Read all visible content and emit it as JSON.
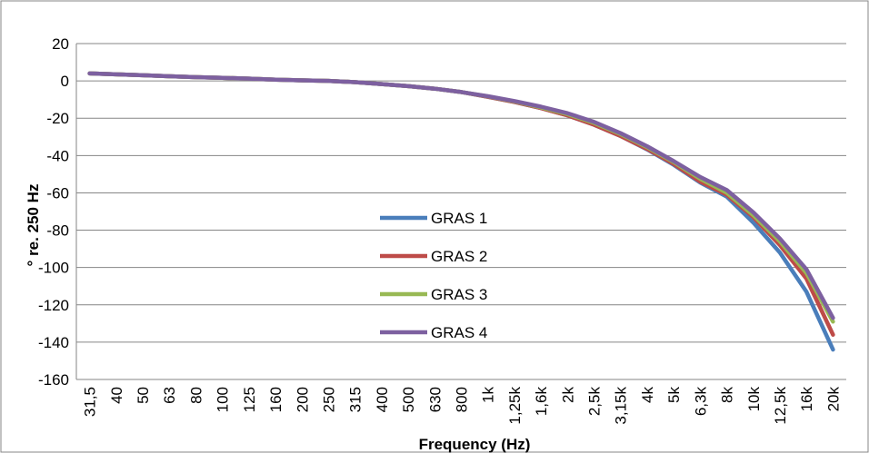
{
  "chart_data": {
    "type": "line",
    "xlabel": "Frequency (Hz)",
    "ylabel": "° re. 250 Hz",
    "ylim": [
      -160,
      20
    ],
    "ytick_step": 20,
    "grid": "horizontal",
    "legend_position": "center",
    "categories": [
      "31,5",
      "40",
      "50",
      "63",
      "80",
      "100",
      "125",
      "160",
      "200",
      "250",
      "315",
      "400",
      "500",
      "630",
      "800",
      "1k",
      "1,25k",
      "1,6k",
      "2k",
      "2,5k",
      "3,15k",
      "4k",
      "5k",
      "6,3k",
      "8k",
      "10k",
      "12,5k",
      "16k",
      "20k"
    ],
    "series": [
      {
        "name": "GRAS 1",
        "color": "#4a7ebb",
        "values": [
          4,
          3.5,
          3,
          2.5,
          2,
          1.6,
          1.2,
          0.7,
          0.3,
          0,
          -0.7,
          -1.7,
          -2.8,
          -4.2,
          -6,
          -8.5,
          -11.3,
          -14.6,
          -18.5,
          -23.5,
          -29.5,
          -36.7,
          -45,
          -54.5,
          -62,
          -76,
          -92,
          -113,
          -144
        ]
      },
      {
        "name": "GRAS 2",
        "color": "#be4b48",
        "values": [
          4,
          3.5,
          3,
          2.5,
          2,
          1.6,
          1.2,
          0.7,
          0.3,
          0,
          -0.7,
          -1.7,
          -2.8,
          -4.2,
          -6,
          -8.5,
          -11.3,
          -14.6,
          -18.5,
          -23.5,
          -29.5,
          -36.5,
          -44.5,
          -54,
          -61,
          -73,
          -88,
          -106,
          -136
        ]
      },
      {
        "name": "GRAS 3",
        "color": "#98b954",
        "values": [
          4,
          3.5,
          3,
          2.5,
          2,
          1.6,
          1.2,
          0.7,
          0.3,
          0,
          -0.7,
          -1.7,
          -2.8,
          -4.2,
          -6,
          -8.3,
          -11,
          -14.2,
          -17.8,
          -22.5,
          -28.5,
          -35.5,
          -43.5,
          -52.5,
          -60,
          -72,
          -86,
          -103,
          -129
        ]
      },
      {
        "name": "GRAS 4",
        "color": "#7d60a0",
        "values": [
          4,
          3.5,
          3,
          2.5,
          2,
          1.6,
          1.2,
          0.7,
          0.3,
          0,
          -0.7,
          -1.7,
          -2.8,
          -4.2,
          -6,
          -8.2,
          -10.8,
          -13.8,
          -17.3,
          -22,
          -28,
          -35,
          -43,
          -51.5,
          -58.5,
          -70.5,
          -84.5,
          -101,
          -127
        ]
      }
    ]
  }
}
